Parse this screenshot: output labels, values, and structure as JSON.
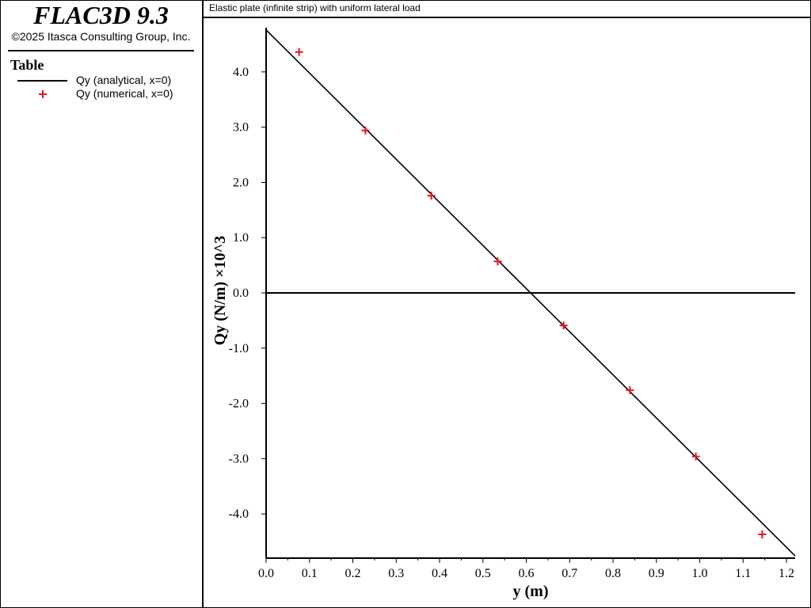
{
  "app": {
    "name": "FLAC3D 9.3",
    "copyright": "©2025 Itasca Consulting Group, Inc."
  },
  "legend": {
    "title": "Table",
    "items": [
      {
        "label": "Qy (analytical, x=0)",
        "symbol": "line",
        "color": "#000000"
      },
      {
        "label": "Qy (numerical, x=0)",
        "symbol": "plus",
        "color": "#e8141c"
      }
    ]
  },
  "chart_data": {
    "type": "line",
    "title": "Elastic plate (infinite strip) with uniform lateral load",
    "xlabel": "y (m)",
    "ylabel": "Qy (N/m) ×10^3",
    "xlim": [
      0.0,
      1.22
    ],
    "ylim": [
      -4.8,
      4.8
    ],
    "xticks": [
      "0.0",
      "0.1",
      "0.2",
      "0.3",
      "0.4",
      "0.5",
      "0.6",
      "0.7",
      "0.8",
      "0.9",
      "1.0",
      "1.1",
      "1.2"
    ],
    "yticks": [
      "4.0",
      "3.0",
      "2.0",
      "1.0",
      "0.0",
      "-1.0",
      "-2.0",
      "-3.0",
      "-4.0"
    ],
    "grid": false,
    "zero_line": true,
    "series": [
      {
        "name": "Qy (analytical, x=0)",
        "type": "line",
        "color": "#000000",
        "x": [
          0.0,
          1.22
        ],
        "y": [
          4.76,
          -4.76
        ]
      },
      {
        "name": "Qy (numerical, x=0)",
        "type": "scatter",
        "marker": "plus",
        "color": "#e8141c",
        "x": [
          0.076,
          0.229,
          0.381,
          0.534,
          0.686,
          0.839,
          0.991,
          1.144
        ],
        "y": [
          4.36,
          2.94,
          1.76,
          0.57,
          -0.59,
          -1.76,
          -2.96,
          -4.37
        ]
      }
    ]
  }
}
